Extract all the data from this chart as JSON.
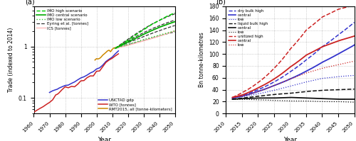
{
  "panel_a": {
    "title": "(a)",
    "xlabel": "Year",
    "ylabel": "Trade (indexed to 2014)",
    "xlim": [
      1960,
      2050
    ],
    "ylim_log": [
      0.05,
      6.0
    ],
    "xticks": [
      1960,
      1970,
      1980,
      1990,
      2000,
      2010,
      2020,
      2030,
      2040,
      2050
    ],
    "historical": {
      "gdp_years": [
        1970,
        1972,
        1974,
        1975,
        1976,
        1978,
        1980,
        1982,
        1984,
        1986,
        1988,
        1990,
        1992,
        1994,
        1996,
        1998,
        2000,
        2002,
        2004,
        2006,
        2008,
        2010,
        2012,
        2014
      ],
      "gdp_vals": [
        0.128,
        0.138,
        0.145,
        0.148,
        0.155,
        0.165,
        0.175,
        0.178,
        0.192,
        0.205,
        0.225,
        0.245,
        0.258,
        0.278,
        0.305,
        0.325,
        0.365,
        0.385,
        0.435,
        0.51,
        0.565,
        0.62,
        0.72,
        0.82
      ],
      "wto_years": [
        1960,
        1962,
        1964,
        1966,
        1968,
        1970,
        1972,
        1974,
        1975,
        1976,
        1978,
        1980,
        1982,
        1984,
        1986,
        1988,
        1990,
        1992,
        1994,
        1996,
        1998,
        2000,
        2002,
        2004,
        2006,
        2008,
        2010,
        2012,
        2014
      ],
      "wto_vals": [
        0.053,
        0.058,
        0.063,
        0.068,
        0.075,
        0.082,
        0.092,
        0.115,
        0.118,
        0.125,
        0.145,
        0.165,
        0.158,
        0.168,
        0.165,
        0.185,
        0.215,
        0.218,
        0.248,
        0.268,
        0.268,
        0.33,
        0.335,
        0.405,
        0.49,
        0.545,
        0.59,
        0.655,
        0.72
      ],
      "rmt_years": [
        1999,
        2000,
        2001,
        2002,
        2003,
        2004,
        2005,
        2006,
        2007,
        2008,
        2009,
        2010,
        2011,
        2012,
        2013,
        2014
      ],
      "rmt_vals": [
        0.545,
        0.58,
        0.572,
        0.588,
        0.625,
        0.68,
        0.72,
        0.765,
        0.82,
        0.845,
        0.79,
        0.88,
        0.93,
        0.945,
        0.97,
        1.0
      ]
    },
    "scenarios": {
      "imo_high_years": [
        2012,
        2015,
        2020,
        2025,
        2030,
        2035,
        2040,
        2045,
        2050
      ],
      "imo_high_vals": [
        0.92,
        1.05,
        1.32,
        1.68,
        2.1,
        2.65,
        3.2,
        3.85,
        4.5
      ],
      "imo_central_years": [
        2012,
        2015,
        2020,
        2025,
        2030,
        2035,
        2040,
        2045,
        2050
      ],
      "imo_central_vals": [
        0.92,
        1.02,
        1.22,
        1.45,
        1.72,
        2.02,
        2.35,
        2.68,
        3.02
      ],
      "imo_low_years": [
        2012,
        2015,
        2020,
        2025,
        2030,
        2035,
        2040,
        2045,
        2050
      ],
      "imo_low_vals": [
        0.92,
        0.98,
        1.1,
        1.22,
        1.35,
        1.5,
        1.65,
        1.82,
        2.0
      ],
      "eyring_years": [
        2012,
        2015,
        2020,
        2025,
        2030,
        2035,
        2040,
        2045,
        2050
      ],
      "eyring_vals_list": [
        [
          0.92,
          1.08,
          1.38,
          1.75,
          2.18,
          2.68,
          3.2,
          3.75,
          4.3
        ],
        [
          0.92,
          1.05,
          1.28,
          1.55,
          1.85,
          2.18,
          2.52,
          2.88,
          3.25
        ],
        [
          0.92,
          1.02,
          1.18,
          1.35,
          1.55,
          1.78,
          2.02,
          2.28,
          2.55
        ],
        [
          0.92,
          0.98,
          1.08,
          1.18,
          1.3,
          1.44,
          1.6,
          1.76,
          1.92
        ]
      ],
      "ics_years": [
        2012,
        2015,
        2020,
        2025,
        2030,
        2035,
        2040,
        2045,
        2050
      ],
      "ics_vals": [
        0.92,
        0.96,
        1.05,
        1.16,
        1.28,
        1.42,
        1.58,
        1.78,
        2.0
      ]
    },
    "colors": {
      "gdp": "#3333cc",
      "wto": "#cc2222",
      "rmt": "#cc8800",
      "imo_high": "#00cc00",
      "imo_central": "#00aa00",
      "imo_low": "#33cc33",
      "eyring": "#333333",
      "ics": "#ffbbbb"
    }
  },
  "panel_b": {
    "title": "(b)",
    "xlabel": "Year",
    "ylabel": "Bn tonne-kilometres",
    "xlim": [
      2010,
      2050
    ],
    "ylim": [
      0,
      180
    ],
    "yticks": [
      0,
      20,
      40,
      60,
      80,
      100,
      120,
      140,
      160,
      180
    ],
    "xticks": [
      2010,
      2015,
      2020,
      2025,
      2030,
      2035,
      2040,
      2045,
      2050
    ],
    "years": [
      2012,
      2015,
      2020,
      2025,
      2030,
      2035,
      2040,
      2045,
      2050
    ],
    "dry_bulk": {
      "high": [
        26,
        30,
        40,
        53,
        70,
        90,
        112,
        132,
        153
      ],
      "central": [
        26,
        29,
        37,
        47,
        58,
        71,
        86,
        100,
        115
      ],
      "low": [
        26,
        28,
        33,
        39,
        46,
        53,
        59,
        62,
        64
      ]
    },
    "liquid_bulk": {
      "high": [
        24,
        26,
        29,
        32,
        34,
        37,
        39,
        40,
        41
      ],
      "central": [
        24,
        25,
        26,
        26,
        27,
        26,
        25,
        24,
        24
      ],
      "low": [
        24,
        24,
        23,
        22,
        21,
        21,
        20,
        20,
        19
      ]
    },
    "unitized": {
      "high": [
        27,
        35,
        52,
        76,
        108,
        140,
        162,
        175,
        182
      ],
      "central": [
        27,
        31,
        43,
        58,
        78,
        98,
        112,
        122,
        130
      ],
      "low": [
        27,
        29,
        37,
        47,
        58,
        68,
        76,
        82,
        88
      ]
    },
    "colors": {
      "dry_bulk": "#3333cc",
      "liquid_bulk": "#111111",
      "unitized": "#cc2222"
    }
  }
}
